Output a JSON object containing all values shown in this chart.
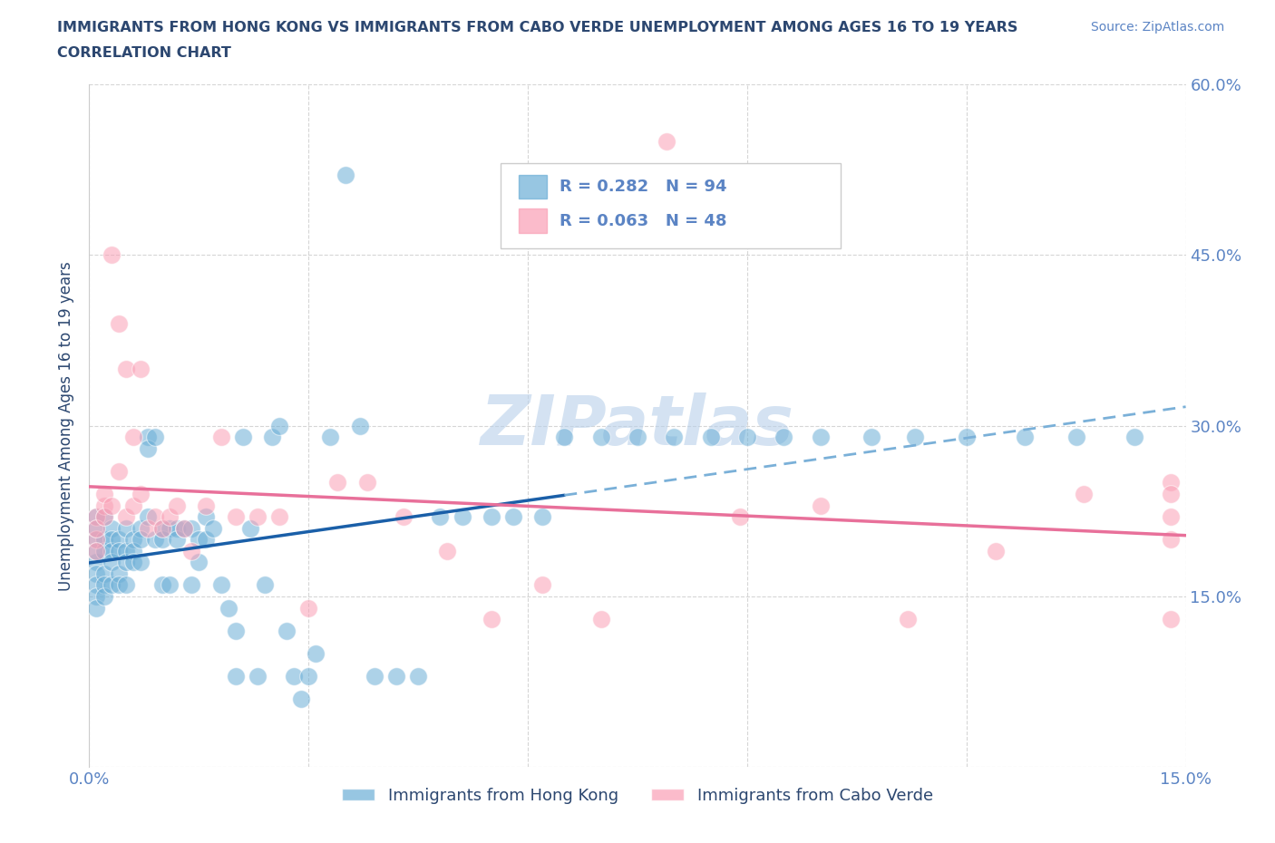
{
  "title_line1": "IMMIGRANTS FROM HONG KONG VS IMMIGRANTS FROM CABO VERDE UNEMPLOYMENT AMONG AGES 16 TO 19 YEARS",
  "title_line2": "CORRELATION CHART",
  "source_text": "Source: ZipAtlas.com",
  "ylabel": "Unemployment Among Ages 16 to 19 years",
  "xlim": [
    0,
    0.15
  ],
  "ylim": [
    0,
    0.6
  ],
  "xtick_positions": [
    0.0,
    0.03,
    0.06,
    0.09,
    0.12,
    0.15
  ],
  "xticklabels": [
    "0.0%",
    "",
    "",
    "",
    "",
    "15.0%"
  ],
  "ytick_positions": [
    0.0,
    0.15,
    0.3,
    0.45,
    0.6
  ],
  "yticklabels_right": [
    "",
    "15.0%",
    "30.0%",
    "45.0%",
    "60.0%"
  ],
  "watermark": "ZIPatlas",
  "legend1_label": "Immigrants from Hong Kong",
  "legend2_label": "Immigrants from Cabo Verde",
  "R1": 0.282,
  "N1": 94,
  "R2": 0.063,
  "N2": 48,
  "color_hk": "#6baed6",
  "color_cv": "#fa9fb5",
  "title_color": "#2c4770",
  "tick_color": "#5b84c4",
  "grid_color": "#cccccc",
  "watermark_color": "#b8d0ea",
  "hk_line_color": "#1a5fa8",
  "hk_dash_color": "#7ab0d8",
  "cv_line_color": "#e8709a",
  "hk_x": [
    0.001,
    0.001,
    0.001,
    0.001,
    0.001,
    0.001,
    0.001,
    0.001,
    0.001,
    0.002,
    0.002,
    0.002,
    0.002,
    0.002,
    0.002,
    0.003,
    0.003,
    0.003,
    0.003,
    0.003,
    0.004,
    0.004,
    0.004,
    0.004,
    0.005,
    0.005,
    0.005,
    0.005,
    0.006,
    0.006,
    0.006,
    0.007,
    0.007,
    0.007,
    0.008,
    0.008,
    0.008,
    0.009,
    0.009,
    0.01,
    0.01,
    0.01,
    0.011,
    0.011,
    0.012,
    0.012,
    0.013,
    0.014,
    0.014,
    0.015,
    0.015,
    0.016,
    0.016,
    0.017,
    0.018,
    0.019,
    0.02,
    0.02,
    0.021,
    0.022,
    0.023,
    0.024,
    0.025,
    0.026,
    0.027,
    0.028,
    0.029,
    0.03,
    0.031,
    0.033,
    0.035,
    0.037,
    0.039,
    0.042,
    0.045,
    0.048,
    0.051,
    0.055,
    0.058,
    0.062,
    0.065,
    0.07,
    0.075,
    0.08,
    0.085,
    0.09,
    0.095,
    0.1,
    0.107,
    0.113,
    0.12,
    0.128,
    0.135,
    0.143
  ],
  "hk_y": [
    0.2,
    0.22,
    0.18,
    0.17,
    0.21,
    0.19,
    0.16,
    0.15,
    0.14,
    0.22,
    0.2,
    0.19,
    0.17,
    0.16,
    0.15,
    0.21,
    0.2,
    0.19,
    0.18,
    0.16,
    0.2,
    0.19,
    0.17,
    0.16,
    0.21,
    0.19,
    0.18,
    0.16,
    0.2,
    0.19,
    0.18,
    0.21,
    0.2,
    0.18,
    0.29,
    0.28,
    0.22,
    0.29,
    0.2,
    0.21,
    0.2,
    0.16,
    0.21,
    0.16,
    0.21,
    0.2,
    0.21,
    0.21,
    0.16,
    0.2,
    0.18,
    0.2,
    0.22,
    0.21,
    0.16,
    0.14,
    0.08,
    0.12,
    0.29,
    0.21,
    0.08,
    0.16,
    0.29,
    0.3,
    0.12,
    0.08,
    0.06,
    0.08,
    0.1,
    0.29,
    0.52,
    0.3,
    0.08,
    0.08,
    0.08,
    0.22,
    0.22,
    0.22,
    0.22,
    0.22,
    0.29,
    0.29,
    0.29,
    0.29,
    0.29,
    0.29,
    0.29,
    0.29,
    0.29,
    0.29,
    0.29,
    0.29,
    0.29,
    0.29
  ],
  "cv_x": [
    0.001,
    0.001,
    0.001,
    0.001,
    0.002,
    0.002,
    0.002,
    0.003,
    0.003,
    0.004,
    0.004,
    0.005,
    0.005,
    0.006,
    0.006,
    0.007,
    0.007,
    0.008,
    0.009,
    0.01,
    0.011,
    0.012,
    0.013,
    0.014,
    0.016,
    0.018,
    0.02,
    0.023,
    0.026,
    0.03,
    0.034,
    0.038,
    0.043,
    0.049,
    0.055,
    0.062,
    0.07,
    0.079,
    0.089,
    0.1,
    0.112,
    0.124,
    0.136,
    0.148,
    0.148,
    0.148,
    0.148,
    0.148
  ],
  "cv_y": [
    0.22,
    0.2,
    0.19,
    0.21,
    0.23,
    0.22,
    0.24,
    0.23,
    0.45,
    0.26,
    0.39,
    0.22,
    0.35,
    0.23,
    0.29,
    0.24,
    0.35,
    0.21,
    0.22,
    0.21,
    0.22,
    0.23,
    0.21,
    0.19,
    0.23,
    0.29,
    0.22,
    0.22,
    0.22,
    0.14,
    0.25,
    0.25,
    0.22,
    0.19,
    0.13,
    0.16,
    0.13,
    0.55,
    0.22,
    0.23,
    0.13,
    0.19,
    0.24,
    0.13,
    0.22,
    0.2,
    0.25,
    0.24
  ]
}
